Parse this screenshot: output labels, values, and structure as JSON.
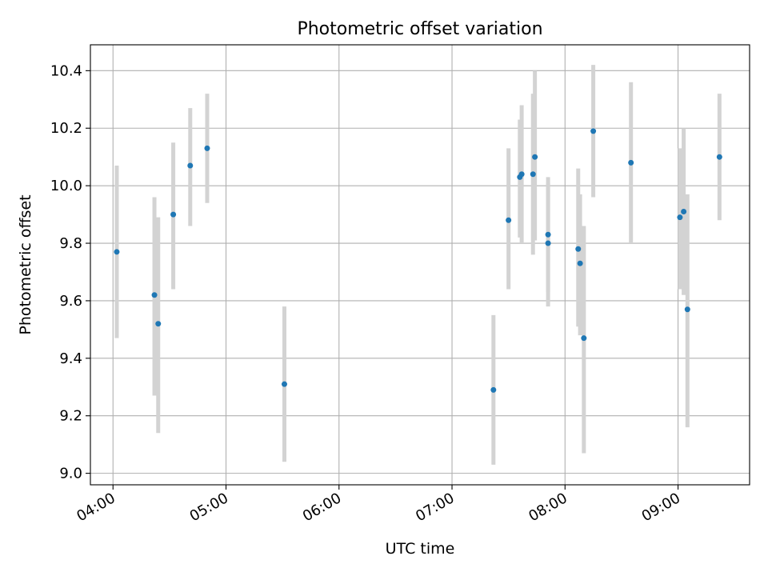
{
  "chart_data": {
    "type": "scatter",
    "title": "Photometric offset variation",
    "xlabel": "UTC time",
    "ylabel": "Photometric offset",
    "x_format": "time",
    "xlim": [
      "03:48",
      "09:38"
    ],
    "ylim": [
      8.96,
      10.49
    ],
    "x_ticks": [
      "04:00",
      "05:00",
      "06:00",
      "07:00",
      "08:00",
      "09:00"
    ],
    "y_ticks": [
      9.0,
      9.2,
      9.4,
      9.6,
      9.8,
      10.0,
      10.2,
      10.4
    ],
    "y_tick_labels": [
      "9.0",
      "9.2",
      "9.4",
      "9.6",
      "9.8",
      "10.0",
      "10.2",
      "10.4"
    ],
    "grid": true,
    "colors": {
      "points": "#1f77b4",
      "error_bars": "#d3d3d3",
      "grid": "#b0b0b0"
    },
    "points": [
      {
        "x": "04:02",
        "y": 9.77,
        "ylow": 9.47,
        "yhigh": 10.07
      },
      {
        "x": "04:22",
        "y": 9.62,
        "ylow": 9.27,
        "yhigh": 9.96
      },
      {
        "x": "04:24",
        "y": 9.52,
        "ylow": 9.14,
        "yhigh": 9.89
      },
      {
        "x": "04:32",
        "y": 9.9,
        "ylow": 9.64,
        "yhigh": 10.15
      },
      {
        "x": "04:41",
        "y": 10.07,
        "ylow": 9.86,
        "yhigh": 10.27
      },
      {
        "x": "04:50",
        "y": 10.13,
        "ylow": 9.94,
        "yhigh": 10.32
      },
      {
        "x": "05:31",
        "y": 9.31,
        "ylow": 9.04,
        "yhigh": 9.58
      },
      {
        "x": "07:22",
        "y": 9.29,
        "ylow": 9.03,
        "yhigh": 9.55
      },
      {
        "x": "07:30",
        "y": 9.88,
        "ylow": 9.64,
        "yhigh": 10.13
      },
      {
        "x": "07:36",
        "y": 10.03,
        "ylow": 9.82,
        "yhigh": 10.23
      },
      {
        "x": "07:37",
        "y": 10.04,
        "ylow": 9.8,
        "yhigh": 10.28
      },
      {
        "x": "07:43",
        "y": 10.04,
        "ylow": 9.76,
        "yhigh": 10.32
      },
      {
        "x": "07:44",
        "y": 10.1,
        "ylow": 9.81,
        "yhigh": 10.4
      },
      {
        "x": "07:51",
        "y": 9.83,
        "ylow": 9.63,
        "yhigh": 10.03
      },
      {
        "x": "07:51",
        "y": 9.8,
        "ylow": 9.58,
        "yhigh": 10.01
      },
      {
        "x": "08:07",
        "y": 9.78,
        "ylow": 9.51,
        "yhigh": 10.06
      },
      {
        "x": "08:08",
        "y": 9.73,
        "ylow": 9.48,
        "yhigh": 9.97
      },
      {
        "x": "08:10",
        "y": 9.47,
        "ylow": 9.07,
        "yhigh": 9.86
      },
      {
        "x": "08:15",
        "y": 10.19,
        "ylow": 9.96,
        "yhigh": 10.42
      },
      {
        "x": "08:35",
        "y": 10.08,
        "ylow": 9.8,
        "yhigh": 10.36
      },
      {
        "x": "09:01",
        "y": 9.89,
        "ylow": 9.64,
        "yhigh": 10.13
      },
      {
        "x": "09:03",
        "y": 9.91,
        "ylow": 9.62,
        "yhigh": 10.2
      },
      {
        "x": "09:05",
        "y": 9.57,
        "ylow": 9.16,
        "yhigh": 9.97
      },
      {
        "x": "09:22",
        "y": 10.1,
        "ylow": 9.88,
        "yhigh": 10.32
      }
    ]
  }
}
